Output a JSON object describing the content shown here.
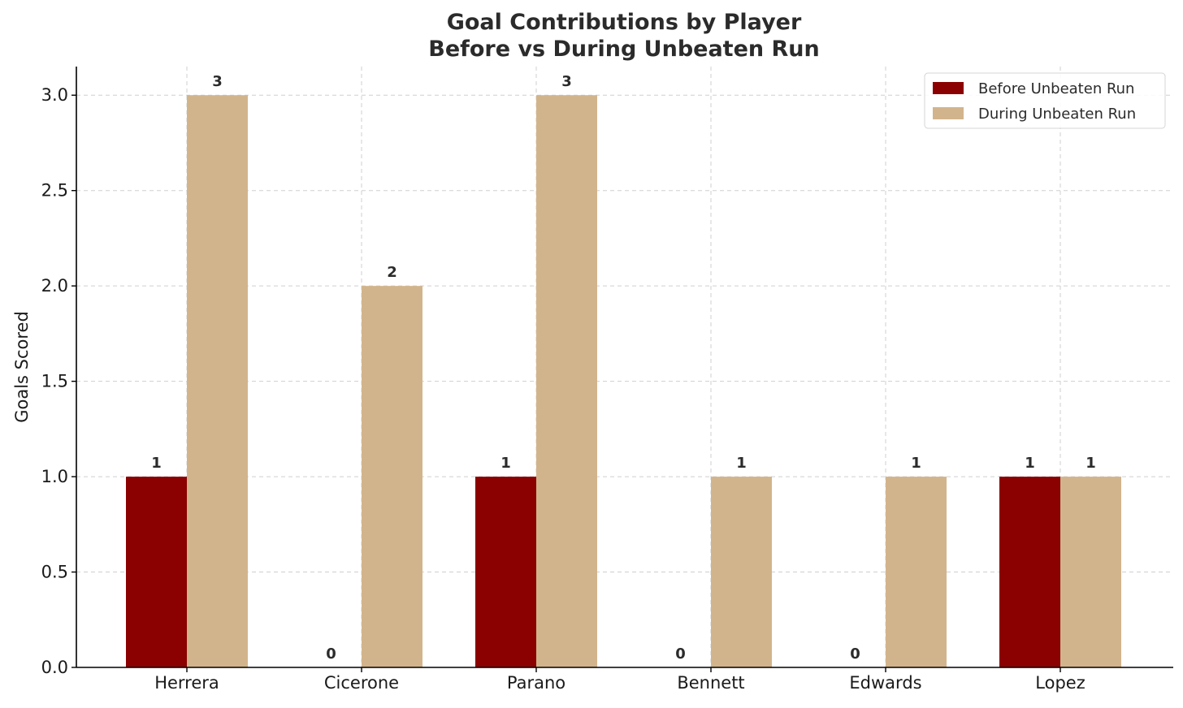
{
  "chart_data": {
    "type": "bar",
    "title": "Goal Contributions by Player",
    "subtitle": "Before vs During Unbeaten Run",
    "xlabel": "",
    "ylabel": "Goals Scored",
    "categories": [
      "Herrera",
      "Cicerone",
      "Parano",
      "Bennett",
      "Edwards",
      "Lopez"
    ],
    "series": [
      {
        "name": "Before Unbeaten Run",
        "values": [
          1,
          0,
          1,
          0,
          0,
          1
        ],
        "color": "#8b0000"
      },
      {
        "name": "During Unbeaten Run",
        "values": [
          3,
          2,
          3,
          1,
          1,
          1
        ],
        "color": "#d2b48c"
      }
    ],
    "ylim": [
      0,
      3.15
    ],
    "yticks": [
      "0.0",
      "0.5",
      "1.0",
      "1.5",
      "2.0",
      "2.5",
      "3.0"
    ],
    "grid": true,
    "legend_position": "top-right",
    "data_labels": true
  }
}
